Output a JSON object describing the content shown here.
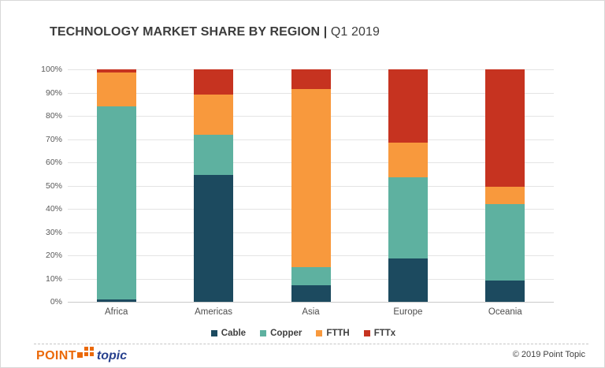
{
  "header": {
    "title_main": "TECHNOLOGY MARKET SHARE BY REGION |",
    "title_period": "Q1 2019"
  },
  "chart_data": {
    "type": "bar",
    "stacked": true,
    "title": "TECHNOLOGY MARKET SHARE BY REGION | Q1 2019",
    "categories": [
      "Africa",
      "Americas",
      "Asia",
      "Europe",
      "Oceania"
    ],
    "series": [
      {
        "name": "Cable",
        "color": "#1c4a5f",
        "values": [
          1,
          54.5,
          7,
          18.5,
          9
        ]
      },
      {
        "name": "Copper",
        "color": "#5eb1a0",
        "values": [
          83,
          17.5,
          8,
          35,
          33
        ]
      },
      {
        "name": "FTTH",
        "color": "#f8993d",
        "values": [
          14.5,
          17,
          76.5,
          15,
          7.5
        ]
      },
      {
        "name": "FTTx",
        "color": "#c63320",
        "values": [
          1.5,
          11,
          8.5,
          31.5,
          50.5
        ]
      }
    ],
    "y_ticks": [
      "0%",
      "10%",
      "20%",
      "30%",
      "40%",
      "50%",
      "60%",
      "70%",
      "80%",
      "90%",
      "100%"
    ],
    "ylim": [
      0,
      100
    ],
    "unit": "%",
    "grid": true,
    "legend_position": "bottom"
  },
  "footer": {
    "logo_point": "POINT",
    "logo_topic": "topic",
    "copyright": "© 2019 Point Topic"
  },
  "colors": {
    "grid": "#e4e4e4",
    "axis": "#c9c9c9",
    "title_text": "#3d3d3d",
    "tick_text": "#595959",
    "logo_orange": "#eb6909",
    "logo_blue": "#27408e"
  }
}
